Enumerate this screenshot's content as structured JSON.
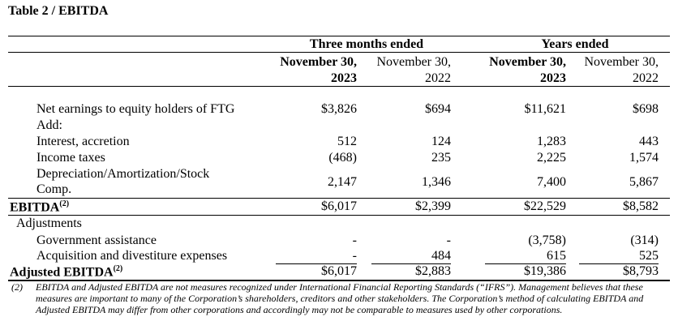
{
  "title": "Table 2 / EBITDA",
  "groups": {
    "three_months": "Three months ended",
    "years": "Years ended"
  },
  "columns": [
    {
      "line1": "November 30,",
      "line2": "2023"
    },
    {
      "line1": "November 30,",
      "line2": "2022"
    },
    {
      "line1": "November 30,",
      "line2": "2023"
    },
    {
      "line1": "November 30,",
      "line2": "2022"
    }
  ],
  "rows": {
    "net_earnings": {
      "label": "Net earnings to equity holders of FTG",
      "values": [
        "$3,826",
        "$694",
        "$11,621",
        "$698"
      ]
    },
    "add": {
      "label": "Add:"
    },
    "interest": {
      "label": "Interest, accretion",
      "values": [
        "512",
        "124",
        "1,283",
        "443"
      ]
    },
    "income_taxes": {
      "label": "Income taxes",
      "values": [
        "(468)",
        "235",
        "2,225",
        "1,574"
      ]
    },
    "depreciation": {
      "label_line1": "Depreciation/Amortization/Stock",
      "label_line2": "Comp.",
      "values": [
        "2,147",
        "1,346",
        "7,400",
        "5,867"
      ]
    },
    "ebitda": {
      "label": "EBITDA",
      "sup": "(2)",
      "values": [
        "$6,017",
        "$2,399",
        "$22,529",
        "$8,582"
      ]
    },
    "adjustments": {
      "label": "Adjustments"
    },
    "gov_assist": {
      "label": "Government assistance",
      "values": [
        "-",
        "-",
        "(3,758)",
        "(314)"
      ]
    },
    "acquisition": {
      "label": "Acquisition and divestiture expenses",
      "values": [
        "-",
        "484",
        "615",
        "525"
      ]
    },
    "adj_ebitda": {
      "label": "Adjusted EBITDA",
      "sup": "(2)",
      "values": [
        "$6,017",
        "$2,883",
        "$19,386",
        "$8,793"
      ]
    }
  },
  "footnote": {
    "number": "(2)",
    "text": "EBITDA and Adjusted EBITDA are not measures recognized under International Financial Reporting Standards (“IFRS”). Management believes that these measures are important to many of the Corporation’s shareholders, creditors and other stakeholders. The Corporation’s method of calculating EBITDA and Adjusted EBITDA may differ from other corporations and accordingly may not be comparable to measures used by other corporations."
  }
}
